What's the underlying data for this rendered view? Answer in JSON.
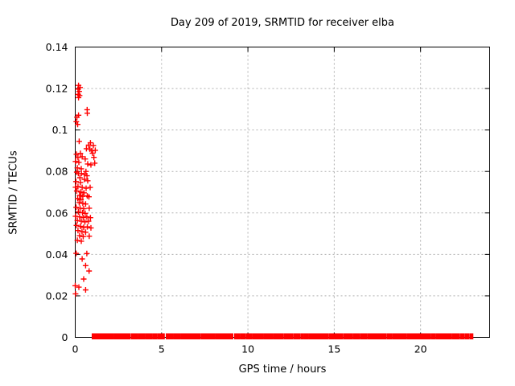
{
  "colors": {
    "marker": "#ff0000",
    "grid": "#b0b0b0",
    "axis": "#000000",
    "background": "#ffffff",
    "text": "#000000"
  },
  "chart_data": {
    "type": "scatter",
    "title": "Day 209 of 2019, SRMTID for receiver elba",
    "xlabel": "GPS time / hours",
    "ylabel": "SRMTID / TECUs",
    "xlim": [
      0,
      24
    ],
    "ylim": [
      0,
      0.14
    ],
    "xticks": [
      0,
      5,
      10,
      15,
      20
    ],
    "xticklabels": [
      "0",
      "5",
      "10",
      "15",
      "20"
    ],
    "yticks": [
      0,
      0.02,
      0.04,
      0.06,
      0.08,
      0.1,
      0.12,
      0.14
    ],
    "yticklabels": [
      "0",
      "0.02",
      "0.04",
      "0.06",
      "0.08",
      "0.1",
      "0.12",
      "0.14"
    ],
    "grid": true,
    "legend": "none",
    "marker": "plus",
    "series": [
      {
        "name": "srmtid-values",
        "points": [
          [
            0.19,
            0.1215
          ],
          [
            0.28,
            0.1205
          ],
          [
            0.16,
            0.1197
          ],
          [
            0.23,
            0.1186
          ],
          [
            0.17,
            0.1172
          ],
          [
            0.25,
            0.1166
          ],
          [
            0.19,
            0.1156
          ],
          [
            0.69,
            0.1098
          ],
          [
            0.7,
            0.1081
          ],
          [
            0.19,
            0.1071
          ],
          [
            0.1,
            0.1062
          ],
          [
            0.06,
            0.104
          ],
          [
            0.14,
            0.1027
          ],
          [
            0.23,
            0.0945
          ],
          [
            0.88,
            0.0938
          ],
          [
            0.78,
            0.0927
          ],
          [
            1.05,
            0.0925
          ],
          [
            0.65,
            0.091
          ],
          [
            0.85,
            0.0908
          ],
          [
            1.16,
            0.0902
          ],
          [
            0.95,
            0.09
          ],
          [
            0.3,
            0.0887
          ],
          [
            1.0,
            0.0888
          ],
          [
            0.07,
            0.0883
          ],
          [
            0.4,
            0.0871
          ],
          [
            1.08,
            0.0868
          ],
          [
            0.16,
            0.0867
          ],
          [
            0.58,
            0.086
          ],
          [
            0.02,
            0.0848
          ],
          [
            0.21,
            0.0844
          ],
          [
            1.13,
            0.084
          ],
          [
            0.72,
            0.0836
          ],
          [
            0.91,
            0.0832
          ],
          [
            0.12,
            0.0817
          ],
          [
            0.35,
            0.0813
          ],
          [
            0.62,
            0.08
          ],
          [
            0.09,
            0.0797
          ],
          [
            0.18,
            0.079
          ],
          [
            0.36,
            0.079
          ],
          [
            0.53,
            0.0786
          ],
          [
            0.68,
            0.0779
          ],
          [
            0.27,
            0.077
          ],
          [
            0.53,
            0.0762
          ],
          [
            0.72,
            0.0755
          ],
          [
            0.04,
            0.0751
          ],
          [
            0.3,
            0.0747
          ],
          [
            0.16,
            0.0727
          ],
          [
            0.02,
            0.0724
          ],
          [
            0.4,
            0.0723
          ],
          [
            0.86,
            0.0723
          ],
          [
            0.63,
            0.0719
          ],
          [
            0.09,
            0.0706
          ],
          [
            0.32,
            0.0701
          ],
          [
            0.51,
            0.0697
          ],
          [
            0.25,
            0.0685
          ],
          [
            0.7,
            0.0682
          ],
          [
            0.44,
            0.068
          ],
          [
            0.79,
            0.0678
          ],
          [
            0.14,
            0.0669
          ],
          [
            0.33,
            0.0664
          ],
          [
            0.23,
            0.065
          ],
          [
            0.44,
            0.0646
          ],
          [
            0.6,
            0.0643
          ],
          [
            0.05,
            0.0627
          ],
          [
            0.28,
            0.0623
          ],
          [
            0.81,
            0.0623
          ],
          [
            0.49,
            0.062
          ],
          [
            0.18,
            0.0605
          ],
          [
            0.42,
            0.0601
          ],
          [
            0.58,
            0.0598
          ],
          [
            0.02,
            0.0584
          ],
          [
            0.25,
            0.0581
          ],
          [
            0.67,
            0.0581
          ],
          [
            0.46,
            0.0578
          ],
          [
            0.88,
            0.0577
          ],
          [
            0.12,
            0.0563
          ],
          [
            0.35,
            0.056
          ],
          [
            0.77,
            0.056
          ],
          [
            0.56,
            0.0557
          ],
          [
            0.07,
            0.054
          ],
          [
            0.3,
            0.0535
          ],
          [
            0.7,
            0.0533
          ],
          [
            0.49,
            0.053
          ],
          [
            0.91,
            0.0528
          ],
          [
            0.16,
            0.0515
          ],
          [
            0.39,
            0.051
          ],
          [
            0.6,
            0.0507
          ],
          [
            0.25,
            0.049
          ],
          [
            0.81,
            0.0488
          ],
          [
            0.46,
            0.0486
          ],
          [
            0.12,
            0.0468
          ],
          [
            0.35,
            0.0464
          ],
          [
            0.05,
            0.0405
          ],
          [
            0.67,
            0.0404
          ],
          [
            0.4,
            0.0378
          ],
          [
            0.6,
            0.0346
          ],
          [
            0.8,
            0.032
          ],
          [
            0.49,
            0.0281
          ],
          [
            0.0,
            0.0249
          ],
          [
            0.21,
            0.0242
          ],
          [
            0.6,
            0.0229
          ],
          [
            0.02,
            0.021
          ]
        ]
      },
      {
        "name": "zero-band",
        "y": 0,
        "segments": [
          [
            1.0,
            2.04
          ],
          [
            2.12,
            2.21
          ],
          [
            2.29,
            3.16
          ],
          [
            3.27,
            3.57
          ],
          [
            3.66,
            3.99
          ],
          [
            4.08,
            4.41
          ],
          [
            4.5,
            4.72
          ],
          [
            4.81,
            5.14
          ],
          [
            5.29,
            5.39
          ],
          [
            5.43,
            5.52
          ],
          [
            5.57,
            5.62
          ],
          [
            5.71,
            5.76
          ],
          [
            5.8,
            6.04
          ],
          [
            6.13,
            7.2
          ],
          [
            7.3,
            8.06
          ],
          [
            8.15,
            9.11
          ],
          [
            9.25,
            9.49
          ],
          [
            9.58,
            9.81
          ],
          [
            9.91,
            10.19
          ],
          [
            10.28,
            10.84
          ],
          [
            10.93,
            11.4
          ],
          [
            11.49,
            12.0
          ],
          [
            12.1,
            12.56
          ],
          [
            12.66,
            12.98
          ],
          [
            13.08,
            13.17
          ],
          [
            13.26,
            13.45
          ],
          [
            13.54,
            13.63
          ],
          [
            13.68,
            14.61
          ],
          [
            14.71,
            14.94
          ],
          [
            15.03,
            15.45
          ],
          [
            15.55,
            16.02
          ],
          [
            16.11,
            16.44
          ],
          [
            16.53,
            16.86
          ],
          [
            16.95,
            17.13
          ],
          [
            17.18,
            17.97
          ],
          [
            18.07,
            18.3
          ],
          [
            18.39,
            19.14
          ],
          [
            19.23,
            20.54
          ],
          [
            20.63,
            20.82
          ],
          [
            20.91,
            21.75
          ],
          [
            21.84,
            22.21
          ],
          [
            22.31,
            22.49
          ],
          [
            22.59,
            22.77
          ],
          [
            22.87,
            23.01
          ]
        ]
      }
    ]
  }
}
